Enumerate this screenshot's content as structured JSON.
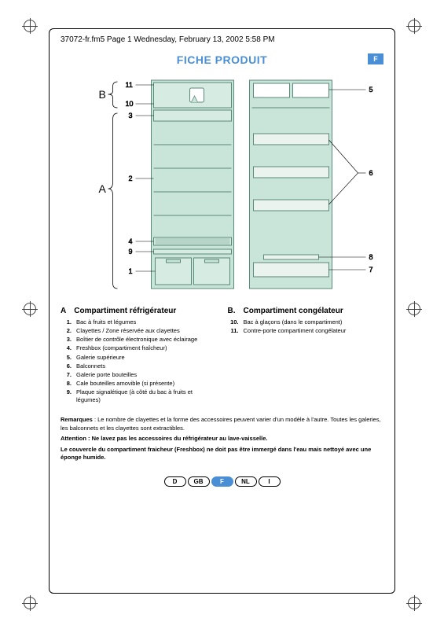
{
  "header": "37072-fr.fm5  Page 1  Wednesday, February 13, 2002  5:58 PM",
  "title": "FICHE PRODUIT",
  "title_badge": "F",
  "colors": {
    "accent": "#4a8fd6",
    "fridge_fill": "#c9e4d8",
    "fridge_stroke": "#5a8a7a",
    "line": "#000000"
  },
  "diagram": {
    "left_label_A": "A",
    "left_label_B": "B",
    "left_callouts": [
      "11",
      "10",
      "3",
      "2",
      "4",
      "9",
      "1"
    ],
    "right_callouts": [
      "5",
      "6",
      "8",
      "7"
    ]
  },
  "section_a": {
    "letter": "A",
    "title": "Compartiment réfrigérateur",
    "items": [
      {
        "n": "1.",
        "t": "Bac à fruits et légumes"
      },
      {
        "n": "2.",
        "t": "Clayettes / Zone réservée aux clayettes"
      },
      {
        "n": "3.",
        "t": "Boîtier de contrôle électronique avec éclairage"
      },
      {
        "n": "4.",
        "t": "Freshbox (compartiment fraîcheur)"
      },
      {
        "n": "5.",
        "t": "Galerie supérieure"
      },
      {
        "n": "6.",
        "t": "Balconnets"
      },
      {
        "n": "7.",
        "t": "Galerie porte bouteilles"
      },
      {
        "n": "8.",
        "t": "Cale bouteilles amovible (si présente)"
      },
      {
        "n": "9.",
        "t": "Plaque signalétique (à côté du bac à fruits et légumes)"
      }
    ]
  },
  "section_b": {
    "letter": "B.",
    "title": "Compartiment congélateur",
    "items": [
      {
        "n": "10.",
        "t": "Bac à glaçons (dans le compartiment)"
      },
      {
        "n": "11.",
        "t": "Contre-porte compartiment congélateur"
      }
    ]
  },
  "remarks": {
    "line1_label": "Remarques",
    "line1_text": " : Le nombre de clayettes et la forme des accessoires peuvent varier d'un modèle à l'autre. Toutes les galeries, les balconnets et les clayettes sont extractibles.",
    "line2": "Attention : Ne lavez pas les accessoires du réfrigérateur au lave-vaisselle.",
    "line3": "Le couvercle du compartiment fraicheur (Freshbox) ne doit pas être immergé dans l'eau mais nettoyé avec une éponge humide."
  },
  "languages": [
    "D",
    "GB",
    "F",
    "NL",
    "I"
  ],
  "active_language": "F"
}
